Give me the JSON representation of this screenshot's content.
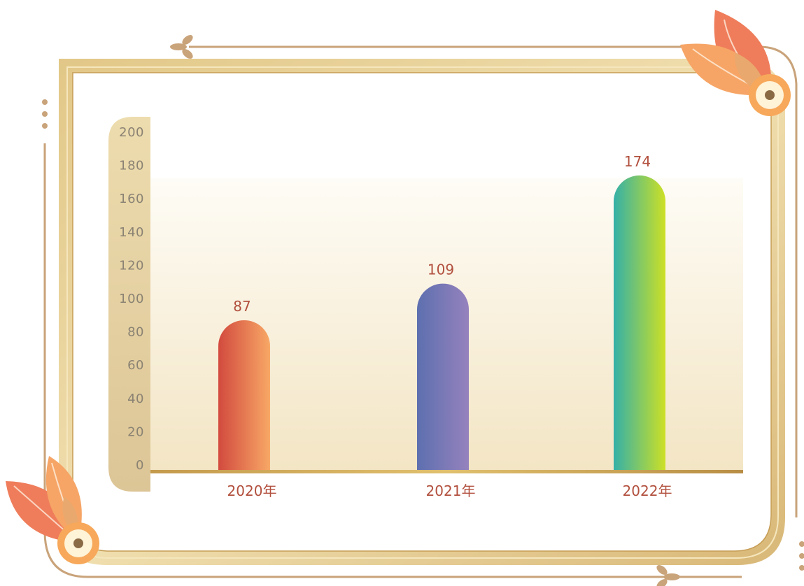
{
  "colors": {
    "frame_outer": "#e6cf98",
    "frame_inner": "#d8b87a",
    "line_brown": "#c9a37a",
    "plot_top": "#fefcf6",
    "plot_bottom": "#f3e5c4",
    "axis_pill": "#e8d6a6",
    "baseline": "#c49a4c",
    "label_red": "#b2503e",
    "tick_gray": "#8a8273",
    "leaf_dark": "#ef7d5b",
    "leaf_light": "#f6a566",
    "leaf_mid": "#e9a96e",
    "ring": "#f7a85a"
  },
  "chart_data": {
    "type": "bar",
    "categories": [
      "2020年",
      "2021年",
      "2022年"
    ],
    "values": [
      87,
      109,
      174
    ],
    "ylim": [
      0,
      200
    ],
    "yticks": [
      0,
      20,
      40,
      60,
      80,
      100,
      120,
      140,
      160,
      180,
      200
    ],
    "grid": false,
    "legend": "none",
    "bar_gradients": [
      [
        "#d24a3e",
        "#f8a866"
      ],
      [
        "#5d6faf",
        "#9582bd"
      ],
      [
        "#34b0a8",
        "#cde025"
      ]
    ]
  }
}
